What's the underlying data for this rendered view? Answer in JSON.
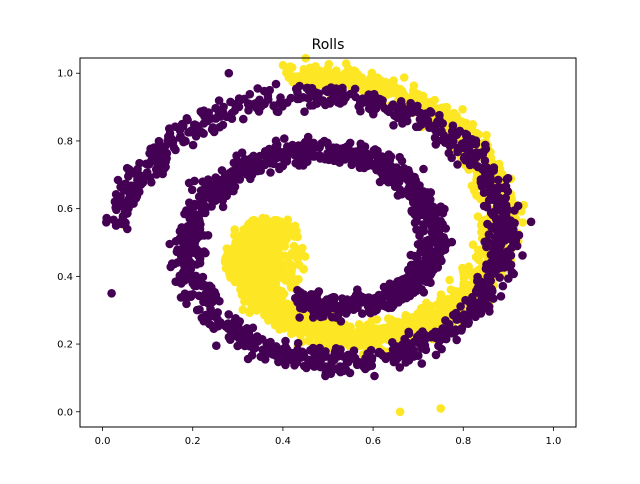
{
  "chart_data": {
    "type": "scatter",
    "title": "Rolls",
    "xlabel": "",
    "ylabel": "",
    "xlim": [
      -0.05,
      1.05
    ],
    "ylim": [
      -0.045,
      1.045
    ],
    "xticks": [
      "0.0",
      "0.2",
      "0.4",
      "0.6",
      "0.8",
      "1.0"
    ],
    "yticks": [
      "0.0",
      "0.2",
      "0.4",
      "0.6",
      "0.8",
      "1.0"
    ],
    "grid": false,
    "legend": "none",
    "colors": {
      "class_0": "#440154",
      "class_1": "#fde725",
      "frame": "#000000"
    },
    "series": [
      {
        "class": 0,
        "color": "#440154",
        "shape": "spiral arm from center (0.42,0.32) winding counter-clockwise outward to (0.02,0.35)",
        "center": [
          0.5,
          0.5
        ],
        "r_start": 0.18,
        "r_end": 0.47,
        "angle_start_deg": -112,
        "angle_end_deg": 534,
        "spread": 0.035,
        "extra_points": [
          [
            0.28,
            1.0
          ],
          [
            0.02,
            0.35
          ],
          [
            0.04,
            0.56
          ],
          [
            0.03,
            0.55
          ]
        ]
      },
      {
        "class": 1,
        "color": "#fde725",
        "shape": "spiral arm from center (0.36,0.45) winding counter-clockwise outward to (0.42,0.99)",
        "center": [
          0.5,
          0.5
        ],
        "r_start": 0.12,
        "r_end": 0.5,
        "angle_start_deg": 150,
        "angle_end_deg": 460,
        "spread": 0.04,
        "core": {
          "cx": 0.36,
          "cy": 0.45,
          "r": 0.09
        },
        "extra_points": [
          [
            0.66,
            0.0
          ],
          [
            0.75,
            0.01
          ],
          [
            0.05,
            0.55
          ],
          [
            0.43,
            0.99
          ]
        ]
      }
    ]
  }
}
